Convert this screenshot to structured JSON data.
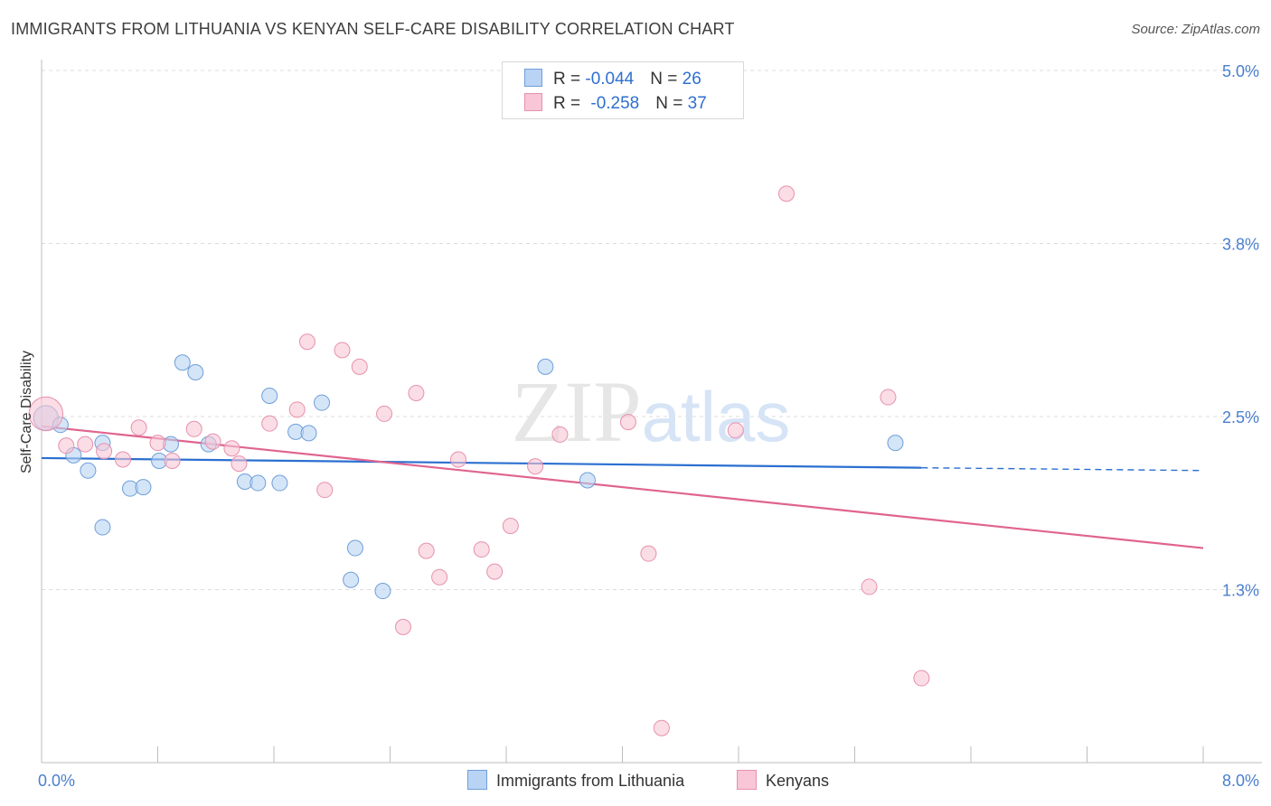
{
  "title": "IMMIGRANTS FROM LITHUANIA VS KENYAN SELF-CARE DISABILITY CORRELATION CHART",
  "source": "Source: ZipAtlas.com",
  "watermark": "ZIPatlas",
  "legend_stats": [
    {
      "r_label": "R = ",
      "r_value": "-0.044",
      "n_label": "N = ",
      "n_value": "26"
    },
    {
      "r_label": "R = ",
      "r_value": "-0.258",
      "n_label": "N = ",
      "n_value": "37"
    }
  ],
  "bottom_legend": [
    "Immigrants from Lithuania",
    "Kenyans"
  ],
  "colors": {
    "blue_fill": "#b8d3f4",
    "blue_stroke": "#6f9fd8",
    "blue_line": "#2b6fd0",
    "pink_fill": "#f8c6d6",
    "pink_stroke": "#e691ad",
    "pink_line": "#e0648f",
    "tick_text": "#4a7fcf"
  },
  "chart_data": {
    "type": "scatter",
    "xlabel": "",
    "ylabel": "Self-Care Disability",
    "xlim": [
      0,
      8.0
    ],
    "ylim": [
      0,
      5.0
    ],
    "x_tick_labels": [
      {
        "value": 0,
        "label": "0.0%"
      },
      {
        "value": 8.0,
        "label": "8.0%"
      }
    ],
    "y_tick_labels": [
      {
        "value": 5.0,
        "label": "5.0%"
      },
      {
        "value": 3.75,
        "label": "3.8%"
      },
      {
        "value": 2.5,
        "label": "2.5%"
      },
      {
        "value": 1.25,
        "label": "1.3%"
      }
    ],
    "grid": true,
    "series": [
      {
        "name": "Immigrants from Lithuania",
        "color": "#b8d3f4",
        "points": [
          [
            0.03,
            2.49,
            1.6
          ],
          [
            0.13,
            2.44,
            1
          ],
          [
            0.22,
            2.22,
            1
          ],
          [
            0.32,
            2.11,
            1
          ],
          [
            0.42,
            2.31,
            1
          ],
          [
            0.42,
            1.7,
            1
          ],
          [
            0.61,
            1.98,
            1
          ],
          [
            0.7,
            1.99,
            1
          ],
          [
            0.81,
            2.18,
            1
          ],
          [
            0.89,
            2.3,
            1
          ],
          [
            0.97,
            2.89,
            1
          ],
          [
            1.06,
            2.82,
            1
          ],
          [
            1.15,
            2.3,
            1
          ],
          [
            1.4,
            2.03,
            1
          ],
          [
            1.49,
            2.02,
            1
          ],
          [
            1.57,
            2.65,
            1
          ],
          [
            1.64,
            2.02,
            1
          ],
          [
            1.75,
            2.39,
            1
          ],
          [
            1.84,
            2.38,
            1
          ],
          [
            1.93,
            2.6,
            1
          ],
          [
            2.13,
            1.32,
            1
          ],
          [
            2.16,
            1.55,
            1
          ],
          [
            2.35,
            1.24,
            1
          ],
          [
            3.47,
            2.86,
            1
          ],
          [
            3.76,
            2.04,
            1
          ],
          [
            5.88,
            2.31,
            1
          ]
        ]
      },
      {
        "name": "Kenyans",
        "color": "#f8c6d6",
        "points": [
          [
            0.03,
            2.52,
            2.2
          ],
          [
            0.17,
            2.29,
            1
          ],
          [
            0.3,
            2.3,
            1
          ],
          [
            0.43,
            2.25,
            1
          ],
          [
            0.56,
            2.19,
            1
          ],
          [
            0.67,
            2.42,
            1
          ],
          [
            0.8,
            2.31,
            1
          ],
          [
            0.9,
            2.18,
            1
          ],
          [
            1.05,
            2.41,
            1
          ],
          [
            1.18,
            2.32,
            1
          ],
          [
            1.31,
            2.27,
            1
          ],
          [
            1.36,
            2.16,
            1
          ],
          [
            1.57,
            2.45,
            1
          ],
          [
            1.76,
            2.55,
            1
          ],
          [
            1.83,
            3.04,
            1
          ],
          [
            1.95,
            1.97,
            1
          ],
          [
            2.07,
            2.98,
            1
          ],
          [
            2.19,
            2.86,
            1
          ],
          [
            2.36,
            2.52,
            1
          ],
          [
            2.49,
            0.98,
            1
          ],
          [
            2.58,
            2.67,
            1
          ],
          [
            2.65,
            1.53,
            1
          ],
          [
            2.74,
            1.34,
            1
          ],
          [
            2.87,
            2.19,
            1
          ],
          [
            3.03,
            1.54,
            1
          ],
          [
            3.12,
            1.38,
            1
          ],
          [
            3.23,
            1.71,
            1
          ],
          [
            3.4,
            2.14,
            1
          ],
          [
            3.57,
            2.37,
            1
          ],
          [
            4.04,
            2.46,
            1
          ],
          [
            4.18,
            1.51,
            1
          ],
          [
            4.27,
            0.25,
            1
          ],
          [
            4.78,
            2.4,
            1
          ],
          [
            5.13,
            4.11,
            1
          ],
          [
            5.7,
            1.27,
            1
          ],
          [
            5.83,
            2.64,
            1
          ],
          [
            6.06,
            0.61,
            1
          ]
        ]
      }
    ],
    "trend_lines": [
      {
        "name": "Immigrants from Lithuania",
        "solid": [
          [
            0,
            2.2
          ],
          [
            6.06,
            2.13
          ]
        ],
        "dashed": [
          [
            6.06,
            2.13
          ],
          [
            8.0,
            2.11
          ]
        ]
      },
      {
        "name": "Kenyans",
        "solid": [
          [
            0,
            2.43
          ],
          [
            8.0,
            1.55
          ]
        ]
      }
    ]
  }
}
